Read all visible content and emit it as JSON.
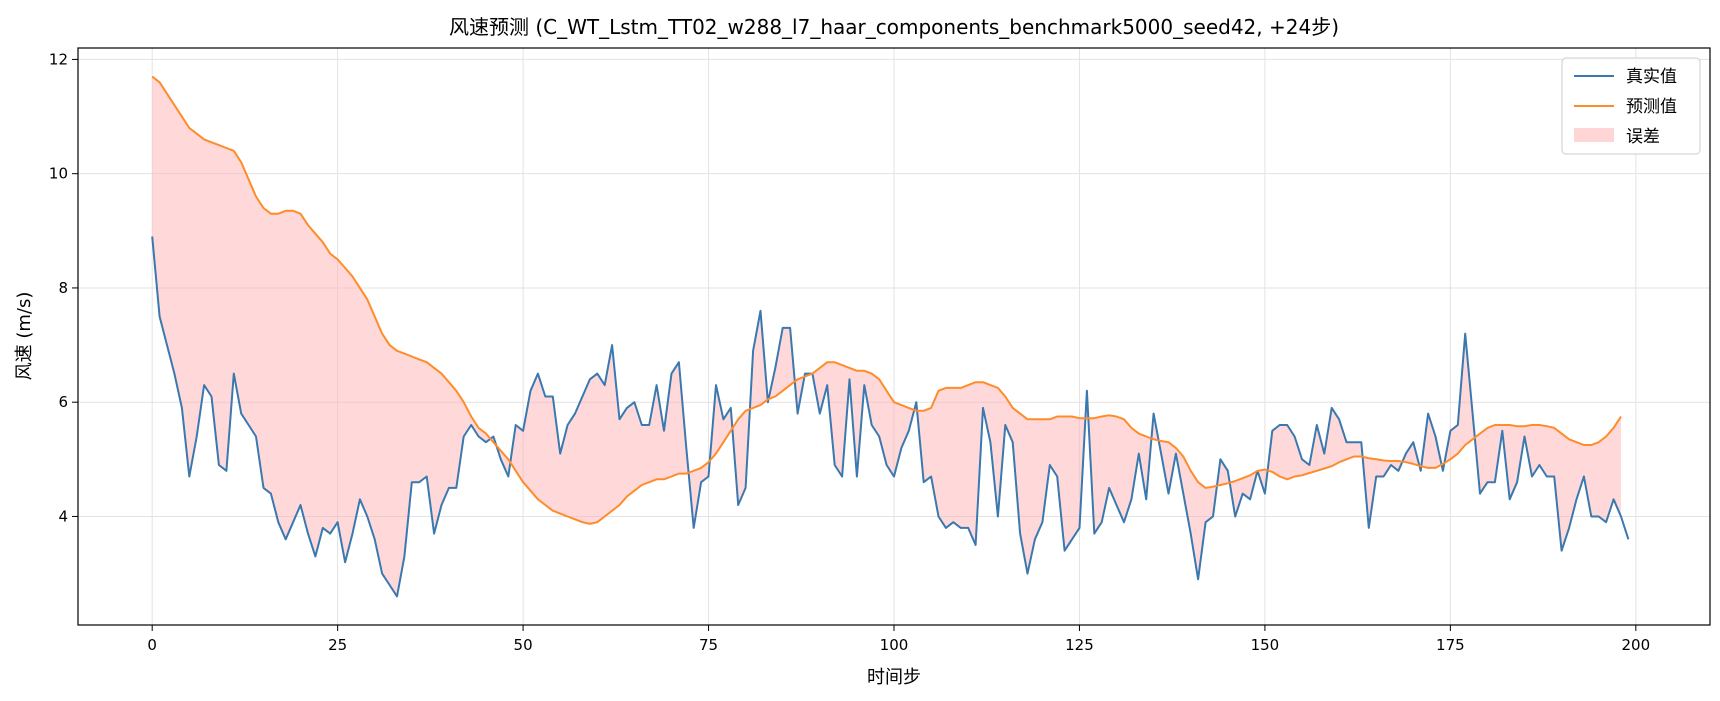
{
  "chart_data": {
    "type": "line",
    "title": "风速预测 (C_WT_Lstm_TT02_w288_l7_haar_components_benchmark5000_seed42, +24步)",
    "xlabel": "时间步",
    "ylabel": "风速 (m/s)",
    "xlim": [
      -10,
      210
    ],
    "ylim": [
      2.1,
      12.2
    ],
    "xticks": [
      0,
      25,
      50,
      75,
      100,
      125,
      150,
      175,
      200
    ],
    "yticks": [
      4,
      6,
      8,
      10,
      12
    ],
    "grid": true,
    "legend_position": "top-right",
    "series": [
      {
        "name": "真实值",
        "color": "#3a78b0",
        "y": [
          8.9,
          7.5,
          7.0,
          6.5,
          5.9,
          4.7,
          5.4,
          6.3,
          6.1,
          4.9,
          4.8,
          6.5,
          5.8,
          5.6,
          5.4,
          4.5,
          4.4,
          3.9,
          3.6,
          3.9,
          4.2,
          3.7,
          3.3,
          3.8,
          3.7,
          3.9,
          3.2,
          3.7,
          4.3,
          4.0,
          3.6,
          3.0,
          2.8,
          2.6,
          3.3,
          4.6,
          4.6,
          4.7,
          3.7,
          4.2,
          4.5,
          4.5,
          5.4,
          5.6,
          5.4,
          5.3,
          5.4,
          5.0,
          4.7,
          5.6,
          5.5,
          6.2,
          6.5,
          6.1,
          6.1,
          5.1,
          5.6,
          5.8,
          6.1,
          6.4,
          6.5,
          6.3,
          7.0,
          5.7,
          5.9,
          6.0,
          5.6,
          5.6,
          6.3,
          5.5,
          6.5,
          6.7,
          5.2,
          3.8,
          4.6,
          4.7,
          6.3,
          5.7,
          5.9,
          4.2,
          4.5,
          6.9,
          7.6,
          6.0,
          6.6,
          7.3,
          7.3,
          5.8,
          6.5,
          6.5,
          5.8,
          6.3,
          4.9,
          4.7,
          6.4,
          4.7,
          6.3,
          5.6,
          5.4,
          4.9,
          4.7,
          5.2,
          5.5,
          6.0,
          4.6,
          4.7,
          4.0,
          3.8,
          3.9,
          3.8,
          3.8,
          3.5,
          5.9,
          5.3,
          4.0,
          5.6,
          5.3,
          3.7,
          3.0,
          3.6,
          3.9,
          4.9,
          4.7,
          3.4,
          3.6,
          3.8,
          6.2,
          3.7,
          3.9,
          4.5,
          4.2,
          3.9,
          4.3,
          5.1,
          4.3,
          5.8,
          5.1,
          4.4,
          5.1,
          4.4,
          3.7,
          2.9,
          3.9,
          4.0,
          5.0,
          4.8,
          4.0,
          4.4,
          4.3,
          4.8,
          4.4,
          5.5,
          5.6,
          5.6,
          5.4,
          5.0,
          4.9,
          5.6,
          5.1,
          5.9,
          5.7,
          5.3,
          5.3,
          5.3,
          3.8,
          4.7,
          4.7,
          4.9,
          4.8,
          5.1,
          5.3,
          4.8,
          5.8,
          5.4,
          4.8,
          5.5,
          5.6,
          7.2,
          5.8,
          4.4,
          4.6,
          4.6,
          5.5,
          4.3,
          4.6,
          5.4,
          4.7,
          4.9,
          4.7,
          4.7,
          3.4,
          3.8,
          4.3,
          4.7,
          4.0,
          4.0,
          3.9,
          4.3,
          4.0,
          3.6
        ]
      },
      {
        "name": "预测值",
        "color": "#ff8c2a",
        "y": [
          11.7,
          11.6,
          11.4,
          11.2,
          11.0,
          10.8,
          10.7,
          10.6,
          10.55,
          10.5,
          10.45,
          10.4,
          10.2,
          9.9,
          9.6,
          9.4,
          9.3,
          9.3,
          9.35,
          9.35,
          9.3,
          9.1,
          8.95,
          8.8,
          8.6,
          8.5,
          8.35,
          8.2,
          8.0,
          7.8,
          7.5,
          7.2,
          7.0,
          6.9,
          6.85,
          6.8,
          6.75,
          6.7,
          6.6,
          6.5,
          6.35,
          6.2,
          6.0,
          5.75,
          5.55,
          5.45,
          5.3,
          5.15,
          5.0,
          4.8,
          4.6,
          4.45,
          4.3,
          4.2,
          4.1,
          4.05,
          4.0,
          3.95,
          3.9,
          3.87,
          3.9,
          4.0,
          4.1,
          4.2,
          4.35,
          4.45,
          4.55,
          4.6,
          4.65,
          4.65,
          4.7,
          4.75,
          4.75,
          4.8,
          4.85,
          4.95,
          5.1,
          5.3,
          5.5,
          5.7,
          5.85,
          5.9,
          5.95,
          6.05,
          6.1,
          6.2,
          6.3,
          6.4,
          6.45,
          6.5,
          6.6,
          6.7,
          6.7,
          6.65,
          6.6,
          6.55,
          6.55,
          6.5,
          6.4,
          6.2,
          6.0,
          5.95,
          5.9,
          5.85,
          5.85,
          5.9,
          6.2,
          6.25,
          6.25,
          6.25,
          6.3,
          6.35,
          6.35,
          6.3,
          6.25,
          6.1,
          5.9,
          5.8,
          5.7,
          5.7,
          5.7,
          5.7,
          5.75,
          5.75,
          5.75,
          5.72,
          5.72,
          5.72,
          5.75,
          5.77,
          5.75,
          5.7,
          5.55,
          5.45,
          5.4,
          5.35,
          5.32,
          5.3,
          5.2,
          5.05,
          4.8,
          4.6,
          4.5,
          4.52,
          4.55,
          4.58,
          4.62,
          4.67,
          4.72,
          4.8,
          4.82,
          4.78,
          4.7,
          4.65,
          4.7,
          4.72,
          4.76,
          4.8,
          4.84,
          4.88,
          4.95,
          5.0,
          5.05,
          5.05,
          5.02,
          5.0,
          4.98,
          4.97,
          4.97,
          4.95,
          4.92,
          4.88,
          4.85,
          4.85,
          4.92,
          5.0,
          5.1,
          5.25,
          5.35,
          5.45,
          5.55,
          5.6,
          5.6,
          5.6,
          5.58,
          5.58,
          5.6,
          5.6,
          5.58,
          5.55,
          5.45,
          5.35,
          5.3,
          5.25,
          5.25,
          5.3,
          5.4,
          5.55,
          5.75
        ]
      }
    ],
    "error_band": {
      "name": "误差",
      "color": "#ffb3b3"
    }
  }
}
